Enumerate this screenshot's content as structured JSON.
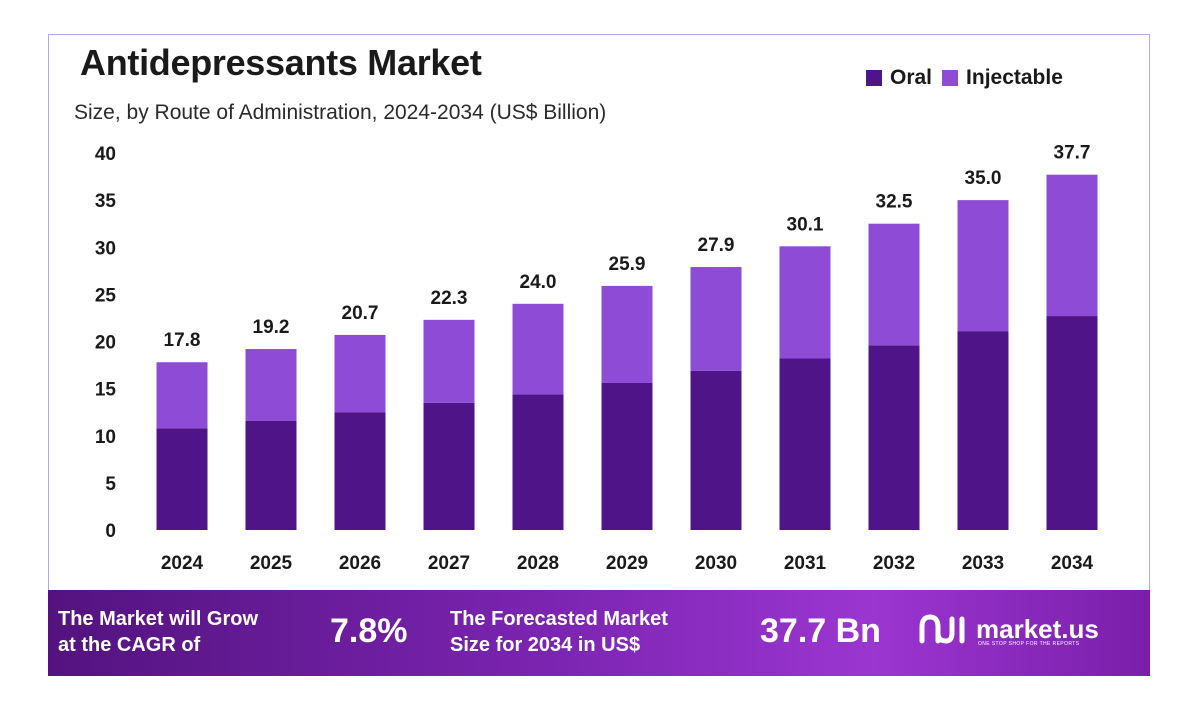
{
  "chart_data": {
    "type": "bar",
    "stacked": true,
    "title": "Antidepressants Market",
    "subtitle": "Size, by Route of Administration, 2024-2034 (US$ Billion)",
    "categories": [
      "2024",
      "2025",
      "2026",
      "2027",
      "2028",
      "2029",
      "2030",
      "2031",
      "2032",
      "2033",
      "2034"
    ],
    "series": [
      {
        "name": "Oral",
        "color": "#4f1487",
        "values": [
          10.8,
          11.6,
          12.5,
          13.5,
          14.4,
          15.6,
          16.9,
          18.2,
          19.6,
          21.1,
          22.7
        ]
      },
      {
        "name": "Injectable",
        "color": "#8e4bd6",
        "values": [
          7.0,
          7.6,
          8.2,
          8.8,
          9.6,
          10.3,
          11.0,
          11.9,
          12.9,
          13.9,
          15.0
        ]
      }
    ],
    "totals": [
      "17.8",
      "19.2",
      "20.7",
      "22.3",
      "24.0",
      "25.9",
      "27.9",
      "30.1",
      "32.5",
      "35.0",
      "37.7"
    ],
    "yticks": [
      0,
      5,
      10,
      15,
      20,
      25,
      30,
      35,
      40
    ],
    "ylim": [
      0,
      40
    ],
    "xlabel": "",
    "ylabel": "",
    "grid": false,
    "legend_position": "top-right"
  },
  "banner": {
    "cagr_label_line1": "The Market will Grow",
    "cagr_label_line2": "at the CAGR of",
    "cagr_value": "7.8%",
    "forecast_label_line1": "The Forecasted Market",
    "forecast_label_line2": "Size for 2034 in US$",
    "forecast_value": "37.7 Bn",
    "logo_name": "market.us",
    "logo_tagline": "ONE STOP SHOP FOR THE REPORTS"
  }
}
